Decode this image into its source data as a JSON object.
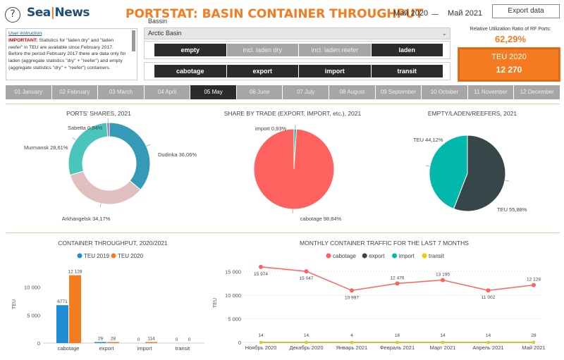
{
  "header": {
    "help_glyph": "?",
    "logo_a": "Sea",
    "logo_slash": "|",
    "logo_b": "News",
    "title": "PORTSTAT: BASIN CONTAINER THROUGHPUT",
    "date_from": "Май 2020",
    "date_to": "Май 2021",
    "export_label": "Export data"
  },
  "instruction": {
    "link": "User instruction",
    "important": "IMPORTANT:",
    "text": " Statistics for \"laden dry\" and \"laden reefer\" in TEU are available since February 2017. Before the period February 2017 there are data only for laden (aggregate statistics \"dry\" + \"reefer\") and empty (aggregate statistics \"dry\" + \"reefer\") containers."
  },
  "filters": {
    "basin_label": "Bassin",
    "basin_value": "Arctic Basin",
    "cargo": [
      "empty",
      "incl. laden dry",
      "incl. laden reefer",
      "laden"
    ],
    "trade": [
      "cabotage",
      "export",
      "import",
      "transit"
    ]
  },
  "kpi": {
    "ratio_label": "Relative Utilization Ratio of RF Ports:",
    "ratio_value": "62,29%",
    "teu_label": "TEU 2020",
    "teu_value": "12 270"
  },
  "months": [
    "01 January",
    "02 February",
    "03 March",
    "04 April",
    "05 May",
    "06 June",
    "07 July",
    "08 August",
    "09 September",
    "10 October",
    "11 November",
    "12 December"
  ],
  "selected_month": "05 May",
  "colors": {
    "orange": "#f47b20",
    "blue": "#1f8dd6",
    "teal_blue": "#3599b8",
    "teal": "#4ac5bb",
    "pink": "#dfbfbf",
    "purple": "#a66999",
    "red": "#fd625e",
    "dark": "#374649",
    "green_teal": "#01b8aa",
    "yellow": "#f2c80f"
  },
  "chart_data": [
    {
      "type": "pie",
      "title": "PORTS' SHARES, 2021",
      "labels": [
        "Dudinka",
        "Arkhangelsk",
        "Murmansk",
        "Sabetta"
      ],
      "values": [
        36.06,
        34.17,
        28.61,
        0.94
      ],
      "label_text": [
        "Dudinka 36,06%",
        "Arkhangelsk 34,17%",
        "Murmansk 28,61%",
        "Sabetta 0,94%"
      ],
      "donut": true
    },
    {
      "type": "pie",
      "title": "SHARE BY TRADE (EXPORT, IMPORT, etc.), 2021",
      "labels": [
        "cabotage",
        "import"
      ],
      "values": [
        98.84,
        0.93
      ],
      "label_text": [
        "cabotage 98,84%",
        "import 0,93%"
      ]
    },
    {
      "type": "pie",
      "title": "EMPTY/LADEN/REEFERS, 2021",
      "labels": [
        "TEU",
        "TEU"
      ],
      "values": [
        55.88,
        44.12
      ],
      "label_text": [
        "TEU 55,88%",
        "TEU 44,12%"
      ]
    },
    {
      "type": "bar",
      "title": "CONTAINER THROUGHPUT, 2020/2021",
      "categories": [
        "cabotage",
        "export",
        "import",
        "transit"
      ],
      "series": [
        {
          "name": "TEU 2019",
          "values": [
            6771,
            29,
            0,
            0
          ],
          "labels": [
            "6771",
            "29",
            "0",
            "0"
          ]
        },
        {
          "name": "TEU 2020",
          "values": [
            12128,
            28,
            114,
            0
          ],
          "labels": [
            "12 128",
            "28",
            "114",
            "0"
          ]
        }
      ],
      "ylabel": "TEU",
      "yticks": [
        "0",
        "5 000",
        "10 000"
      ],
      "ylim": [
        0,
        13000
      ]
    },
    {
      "type": "line",
      "title": "MONTHLY CONTAINER TRAFFIC FOR THE LAST 7 MONTHS",
      "categories": [
        "Ноябрь 2020",
        "Декабрь 2020",
        "Январь 2021",
        "Февраль 2021",
        "Март 2021",
        "Апрель 2021",
        "Май 2021"
      ],
      "series": [
        {
          "name": "cabotage",
          "values": [
            15974,
            15047,
            10997,
            12476,
            13195,
            11002,
            12128
          ],
          "labels": [
            "15 974",
            "15 047",
            "10 997",
            "12 476",
            "13 195",
            "11 002",
            "12 128"
          ]
        },
        {
          "name": "export",
          "values": [
            0,
            0,
            0,
            0,
            0,
            0,
            0
          ]
        },
        {
          "name": "import",
          "values": [
            14,
            14,
            4,
            16,
            14,
            14,
            28
          ],
          "labels": [
            "14",
            "14",
            "4",
            "16",
            "14",
            "14",
            "28"
          ]
        },
        {
          "name": "transit",
          "values": [
            0,
            0,
            0,
            0,
            0,
            0,
            0
          ]
        }
      ],
      "ylabel": "TEU",
      "yticks": [
        "0",
        "5 000",
        "10 000",
        "15 000"
      ],
      "ylim": [
        0,
        17000
      ]
    }
  ]
}
